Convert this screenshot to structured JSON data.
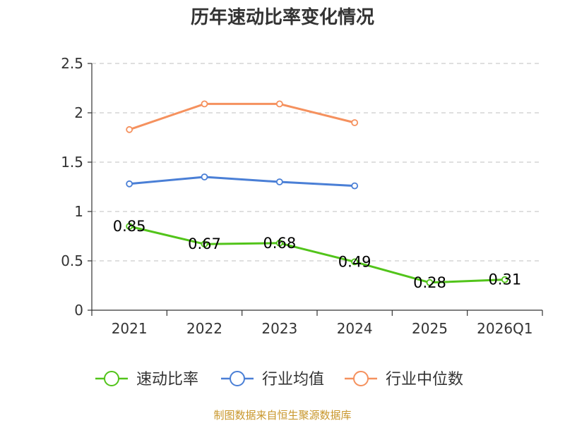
{
  "chart_data": {
    "type": "line",
    "title": "历年速动比率变化情况",
    "categories": [
      "2021",
      "2022",
      "2023",
      "2024",
      "2025",
      "2026Q1"
    ],
    "yticks": [
      "0",
      "0.5",
      "1",
      "1.5",
      "2",
      "2.5"
    ],
    "ylim": [
      0,
      2.5
    ],
    "grid": true,
    "legend_position": "bottom",
    "series": [
      {
        "name": "速动比率",
        "color": "#52c41a",
        "values": [
          0.85,
          0.67,
          0.68,
          0.49,
          0.28,
          0.31
        ],
        "labels": [
          "0.85",
          "0.67",
          "0.68",
          "0.49",
          "0.28",
          "0.31"
        ],
        "show_labels": true
      },
      {
        "name": "行业均值",
        "color": "#4a7fd6",
        "values": [
          1.28,
          1.35,
          1.3,
          1.26,
          null,
          null
        ],
        "show_labels": false
      },
      {
        "name": "行业中位数",
        "color": "#f5915e",
        "values": [
          1.83,
          2.09,
          2.09,
          1.9,
          null,
          null
        ],
        "show_labels": false
      }
    ],
    "source": "制图数据来自恒生聚源数据库"
  }
}
